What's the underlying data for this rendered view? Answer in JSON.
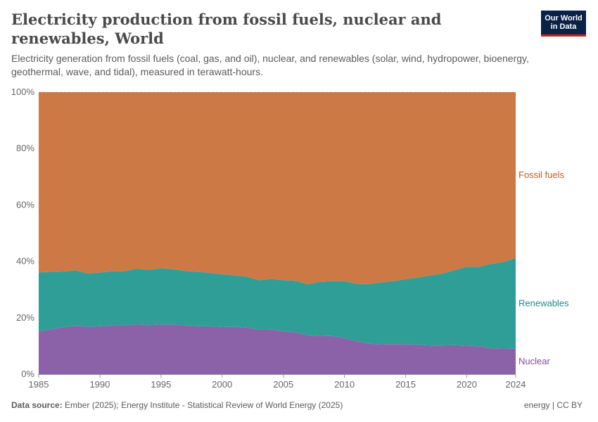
{
  "header": {
    "title": "Electricity production from fossil fuels, nuclear and renewables, World",
    "subtitle": "Electricity generation from fossil fuels (coal, gas, and oil), nuclear, and renewables (solar, wind, hydropower, bioenergy, geothermal, wave, and tidal), measured in terawatt-hours.",
    "logo_line1": "Our World",
    "logo_line2": "in Data"
  },
  "footer": {
    "source_label": "Data source:",
    "source_text": "Ember (2025); Energy Institute - Statistical Review of World Energy (2025)",
    "right_text": "energy | CC BY"
  },
  "colors": {
    "fossil": "#cc7945",
    "renewables": "#2f9e97",
    "nuclear": "#8b62a8",
    "fossil_label": "#bb5c23",
    "renewables_label": "#1f8a84",
    "nuclear_label": "#7a4f9a",
    "grid": "#dddddd",
    "axis": "#666666"
  },
  "chart_data": {
    "type": "area",
    "stacked": true,
    "normalized": true,
    "x": [
      1985,
      1986,
      1987,
      1988,
      1989,
      1990,
      1991,
      1992,
      1993,
      1994,
      1995,
      1996,
      1997,
      1998,
      1999,
      2000,
      2001,
      2002,
      2003,
      2004,
      2005,
      2006,
      2007,
      2008,
      2009,
      2010,
      2011,
      2012,
      2013,
      2014,
      2015,
      2016,
      2017,
      2018,
      2019,
      2020,
      2021,
      2022,
      2023,
      2024
    ],
    "series": [
      {
        "name": "Nuclear",
        "values": [
          15.1,
          15.9,
          16.6,
          17.2,
          16.8,
          17.0,
          17.3,
          17.3,
          17.6,
          17.4,
          17.6,
          17.6,
          17.2,
          17.0,
          17.0,
          16.7,
          16.8,
          16.5,
          15.8,
          15.9,
          15.2,
          14.8,
          13.8,
          13.6,
          13.5,
          12.8,
          11.7,
          10.8,
          10.6,
          10.7,
          10.6,
          10.4,
          10.2,
          10.2,
          10.3,
          10.1,
          9.9,
          9.2,
          9.1,
          9.0
        ]
      },
      {
        "name": "Renewables",
        "values": [
          21.0,
          20.4,
          19.8,
          19.6,
          18.9,
          19.0,
          19.2,
          19.2,
          19.8,
          19.6,
          20.0,
          19.6,
          19.4,
          19.3,
          18.9,
          18.7,
          18.2,
          18.1,
          17.5,
          17.9,
          18.1,
          18.3,
          18.1,
          19.2,
          19.5,
          20.2,
          20.3,
          21.2,
          21.9,
          22.3,
          23.1,
          23.9,
          24.8,
          25.5,
          26.6,
          28.0,
          28.2,
          29.9,
          30.7,
          32.2
        ]
      },
      {
        "name": "Fossil fuels",
        "values": [
          63.9,
          63.7,
          63.6,
          63.2,
          64.3,
          64.0,
          63.5,
          63.5,
          62.6,
          63.0,
          62.4,
          62.8,
          63.4,
          63.7,
          64.1,
          64.6,
          65.0,
          65.4,
          66.7,
          66.2,
          66.7,
          66.9,
          68.1,
          67.2,
          67.0,
          67.0,
          68.0,
          68.0,
          67.5,
          67.0,
          66.3,
          65.7,
          65.0,
          64.3,
          63.1,
          61.9,
          61.9,
          60.9,
          60.2,
          58.8
        ]
      }
    ],
    "ylim": [
      0,
      100
    ],
    "yticks": [
      "0%",
      "20%",
      "40%",
      "60%",
      "80%",
      "100%"
    ],
    "xticks": [
      "1985",
      "1990",
      "1995",
      "2000",
      "2005",
      "2010",
      "2015",
      "2020",
      "2024"
    ],
    "legend_placement": "right, inline labels",
    "grid": true
  }
}
